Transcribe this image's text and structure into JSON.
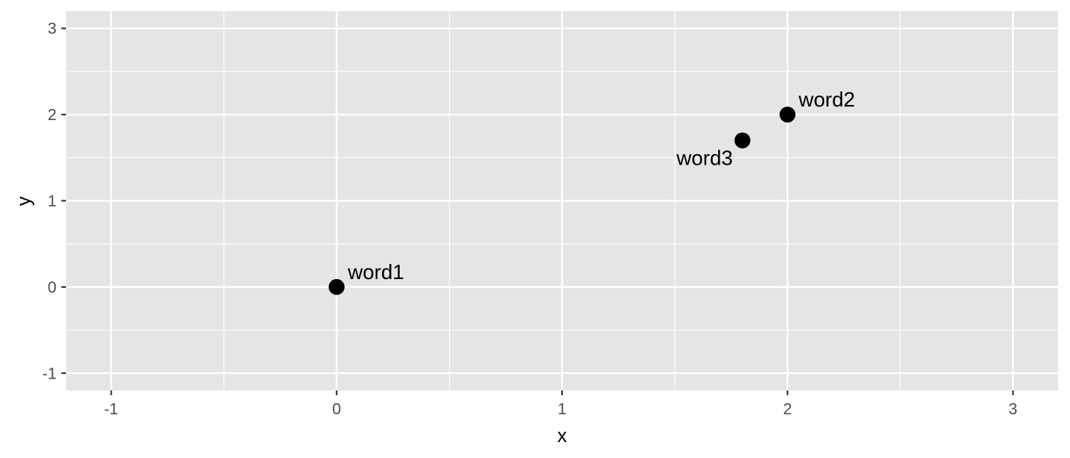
{
  "chart_data": {
    "type": "scatter",
    "title": "",
    "xlabel": "x",
    "ylabel": "y",
    "xlim": [
      -1.2,
      3.2
    ],
    "ylim": [
      -1.2,
      3.2
    ],
    "x_ticks": [
      -1,
      0,
      1,
      2,
      3
    ],
    "y_ticks": [
      -1,
      0,
      1,
      2,
      3
    ],
    "x_tick_labels": [
      "-1",
      "0",
      "1",
      "2",
      "3"
    ],
    "y_tick_labels": [
      "-1",
      "0",
      "1",
      "2",
      "3"
    ],
    "grid": true,
    "points": [
      {
        "label": "word1",
        "x": 0,
        "y": 0,
        "label_side": "top-right"
      },
      {
        "label": "word2",
        "x": 2,
        "y": 2,
        "label_side": "top-right"
      },
      {
        "label": "word3",
        "x": 1.8,
        "y": 1.7,
        "label_side": "bottom-left"
      }
    ],
    "colors": {
      "panel": "#e5e5e5",
      "grid": "#ffffff",
      "point": "#000000",
      "tick": "#333333",
      "tick_text": "#4d4d4d"
    }
  }
}
